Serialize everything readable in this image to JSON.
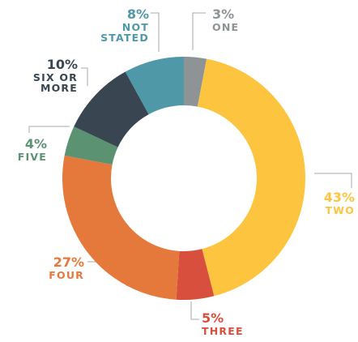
{
  "chart_data": {
    "type": "donut",
    "categories": [
      "ONE",
      "TWO",
      "THREE",
      "FOUR",
      "FIVE",
      "SIX OR MORE",
      "NOT STATED"
    ],
    "values": [
      3,
      43,
      5,
      27,
      4,
      10,
      8
    ],
    "value_labels": [
      "3%",
      "43%",
      "5%",
      "27%",
      "4%",
      "10%",
      "8%"
    ],
    "colors": [
      "#8e9496",
      "#fdc43f",
      "#d94f3d",
      "#e5793b",
      "#5a9272",
      "#394551",
      "#4f98a8"
    ]
  }
}
